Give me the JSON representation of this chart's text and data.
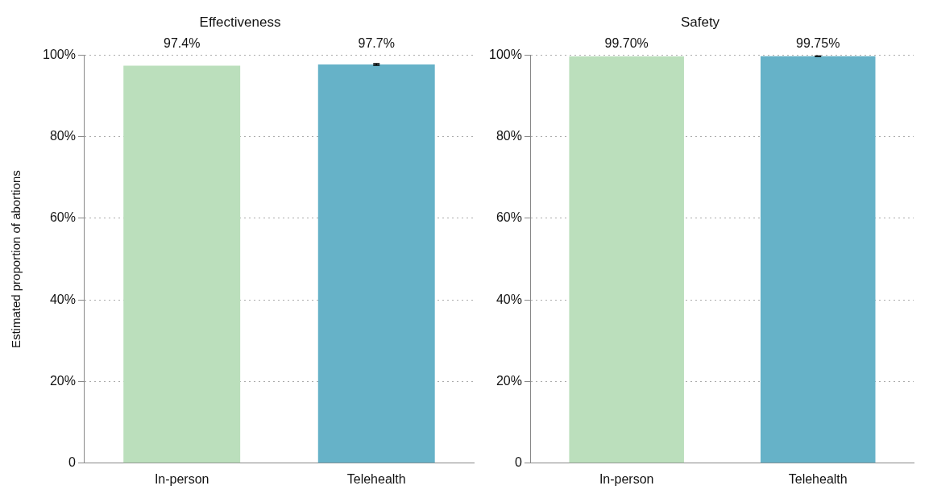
{
  "chart_data": [
    {
      "type": "bar",
      "title": "Effectiveness",
      "ylabel": "Estimated proportion of abortions",
      "categories": [
        "In-person",
        "Telehealth"
      ],
      "values": [
        97.4,
        97.7
      ],
      "colors": [
        "#bbdfbc",
        "#66b2c8"
      ],
      "errors": [
        null,
        0.2
      ],
      "value_labels": [
        "97.4%",
        "97.7%"
      ],
      "ylim": [
        0,
        100
      ],
      "yticks": [
        0,
        {
          "value": 20,
          "label": "20%"
        },
        {
          "value": 40,
          "label": "40%"
        },
        {
          "value": 60,
          "label": "60%"
        },
        {
          "value": 80,
          "label": "80%"
        },
        {
          "value": 100,
          "label": "100%"
        }
      ],
      "grid": "y",
      "legend": false
    },
    {
      "type": "bar",
      "title": "Safety",
      "categories": [
        "In-person",
        "Telehealth"
      ],
      "values": [
        99.7,
        99.75
      ],
      "colors": [
        "#bbdfbc",
        "#66b2c8"
      ],
      "errors": [
        null,
        0.05
      ],
      "value_labels": [
        "99.70%",
        "99.75%"
      ],
      "ylim": [
        0,
        100
      ],
      "yticks": [
        0,
        {
          "value": 20,
          "label": "20%"
        },
        {
          "value": 40,
          "label": "40%"
        },
        {
          "value": 60,
          "label": "60%"
        },
        {
          "value": 80,
          "label": "80%"
        },
        {
          "value": 100,
          "label": "100%"
        }
      ],
      "grid": "y",
      "legend": false
    }
  ]
}
